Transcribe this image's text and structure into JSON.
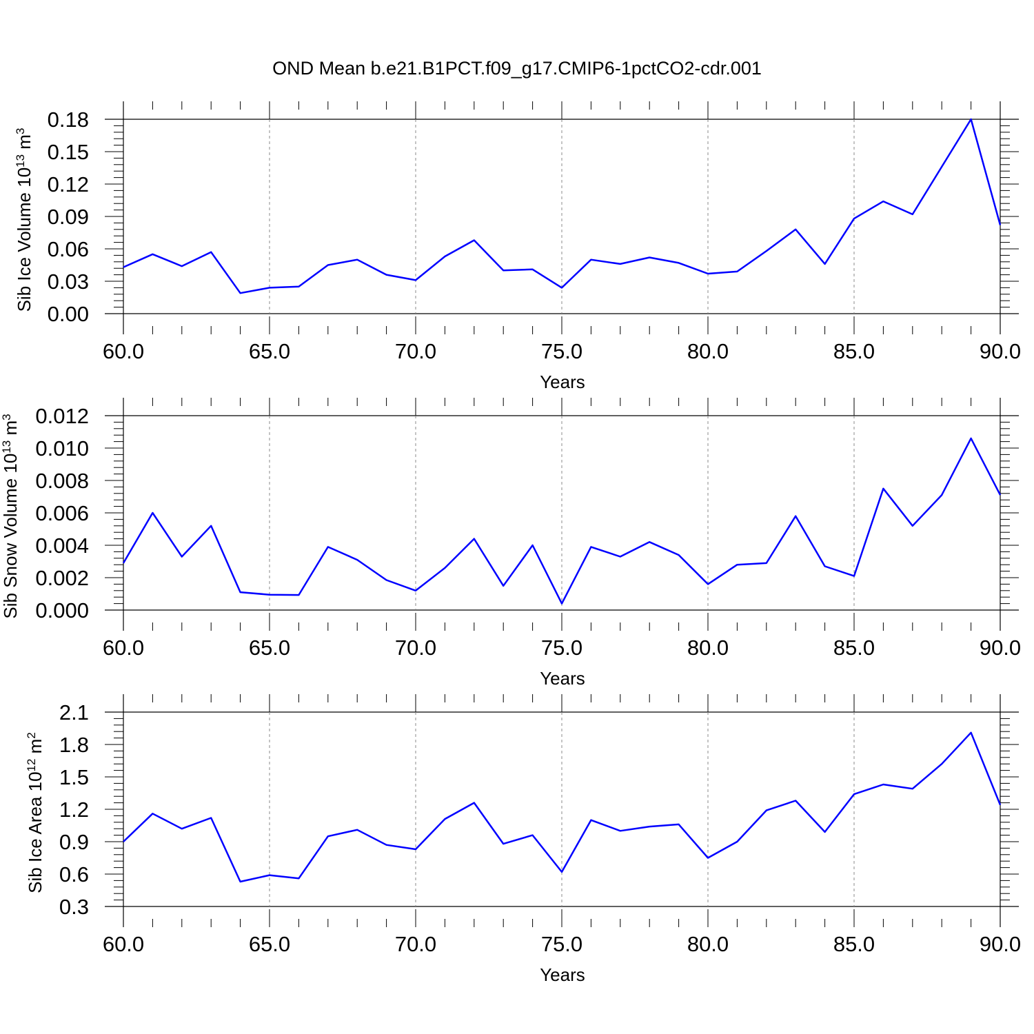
{
  "title": "OND Mean b.e21.B1PCT.f09_g17.CMIP6-1pctCO2-cdr.001",
  "colors": {
    "line": "#0000ff",
    "axis": "#000000",
    "grid": "#888888"
  },
  "chart_data": [
    {
      "type": "line",
      "xlabel": "Years",
      "ylabel": {
        "main": "Sib Ice Volume 10",
        "exp": "13",
        "unit": " m",
        "unit_exp": "3"
      },
      "xlim": [
        60,
        90
      ],
      "ylim": [
        0.0,
        0.18
      ],
      "xticks": [
        "60.0",
        "65.0",
        "70.0",
        "75.0",
        "80.0",
        "85.0",
        "90.0"
      ],
      "yticks": [
        "0.00",
        "0.03",
        "0.06",
        "0.09",
        "0.12",
        "0.15",
        "0.18"
      ],
      "grid": "vertical dashed at major x ticks",
      "series": [
        {
          "x": [
            60,
            61,
            62,
            63,
            64,
            65,
            66,
            67,
            68,
            69,
            70,
            71,
            72,
            73,
            74,
            75,
            76,
            77,
            78,
            79,
            80,
            81,
            82,
            83,
            84,
            85,
            86,
            87,
            88,
            89,
            90
          ],
          "values": [
            0.043,
            0.055,
            0.044,
            0.057,
            0.019,
            0.024,
            0.025,
            0.045,
            0.05,
            0.036,
            0.031,
            0.053,
            0.068,
            0.04,
            0.041,
            0.024,
            0.05,
            0.046,
            0.052,
            0.047,
            0.037,
            0.039,
            0.058,
            0.078,
            0.046,
            0.088,
            0.104,
            0.092,
            0.136,
            0.18,
            0.082
          ]
        }
      ]
    },
    {
      "type": "line",
      "xlabel": "Years",
      "ylabel": {
        "main": "Sib Snow Volume 10",
        "exp": "13",
        "unit": " m",
        "unit_exp": "3"
      },
      "xlim": [
        60,
        90
      ],
      "ylim": [
        0.0,
        0.012
      ],
      "xticks": [
        "60.0",
        "65.0",
        "70.0",
        "75.0",
        "80.0",
        "85.0",
        "90.0"
      ],
      "yticks": [
        "0.000",
        "0.002",
        "0.004",
        "0.006",
        "0.008",
        "0.010",
        "0.012"
      ],
      "grid": "vertical dashed at major x ticks",
      "series": [
        {
          "x": [
            60,
            61,
            62,
            63,
            64,
            65,
            66,
            67,
            68,
            69,
            70,
            71,
            72,
            73,
            74,
            75,
            76,
            77,
            78,
            79,
            80,
            81,
            82,
            83,
            84,
            85,
            86,
            87,
            88,
            89,
            90
          ],
          "values": [
            0.0029,
            0.006,
            0.0033,
            0.0052,
            0.0011,
            0.00095,
            0.00093,
            0.0039,
            0.0031,
            0.00185,
            0.0012,
            0.0026,
            0.0044,
            0.0015,
            0.004,
            0.0004,
            0.0039,
            0.0033,
            0.0042,
            0.0034,
            0.0016,
            0.0028,
            0.0029,
            0.0058,
            0.0027,
            0.0021,
            0.0075,
            0.0052,
            0.0071,
            0.0106,
            0.0071
          ]
        }
      ]
    },
    {
      "type": "line",
      "xlabel": "Years",
      "ylabel": {
        "main": "Sib Ice Area 10",
        "exp": "12",
        "unit": " m",
        "unit_exp": "2"
      },
      "xlim": [
        60,
        90
      ],
      "ylim": [
        0.3,
        2.1
      ],
      "xticks": [
        "60.0",
        "65.0",
        "70.0",
        "75.0",
        "80.0",
        "85.0",
        "90.0"
      ],
      "yticks": [
        "0.3",
        "0.6",
        "0.9",
        "1.2",
        "1.5",
        "1.8",
        "2.1"
      ],
      "grid": "vertical dashed at major x ticks",
      "series": [
        {
          "x": [
            60,
            61,
            62,
            63,
            64,
            65,
            66,
            67,
            68,
            69,
            70,
            71,
            72,
            73,
            74,
            75,
            76,
            77,
            78,
            79,
            80,
            81,
            82,
            83,
            84,
            85,
            86,
            87,
            88,
            89,
            90
          ],
          "values": [
            0.9,
            1.16,
            1.02,
            1.12,
            0.53,
            0.59,
            0.56,
            0.95,
            1.01,
            0.87,
            0.83,
            1.11,
            1.26,
            0.88,
            0.96,
            0.62,
            1.1,
            1.0,
            1.04,
            1.06,
            0.75,
            0.9,
            1.19,
            1.28,
            0.99,
            1.34,
            1.43,
            1.39,
            1.62,
            1.91,
            1.24
          ]
        }
      ]
    }
  ]
}
